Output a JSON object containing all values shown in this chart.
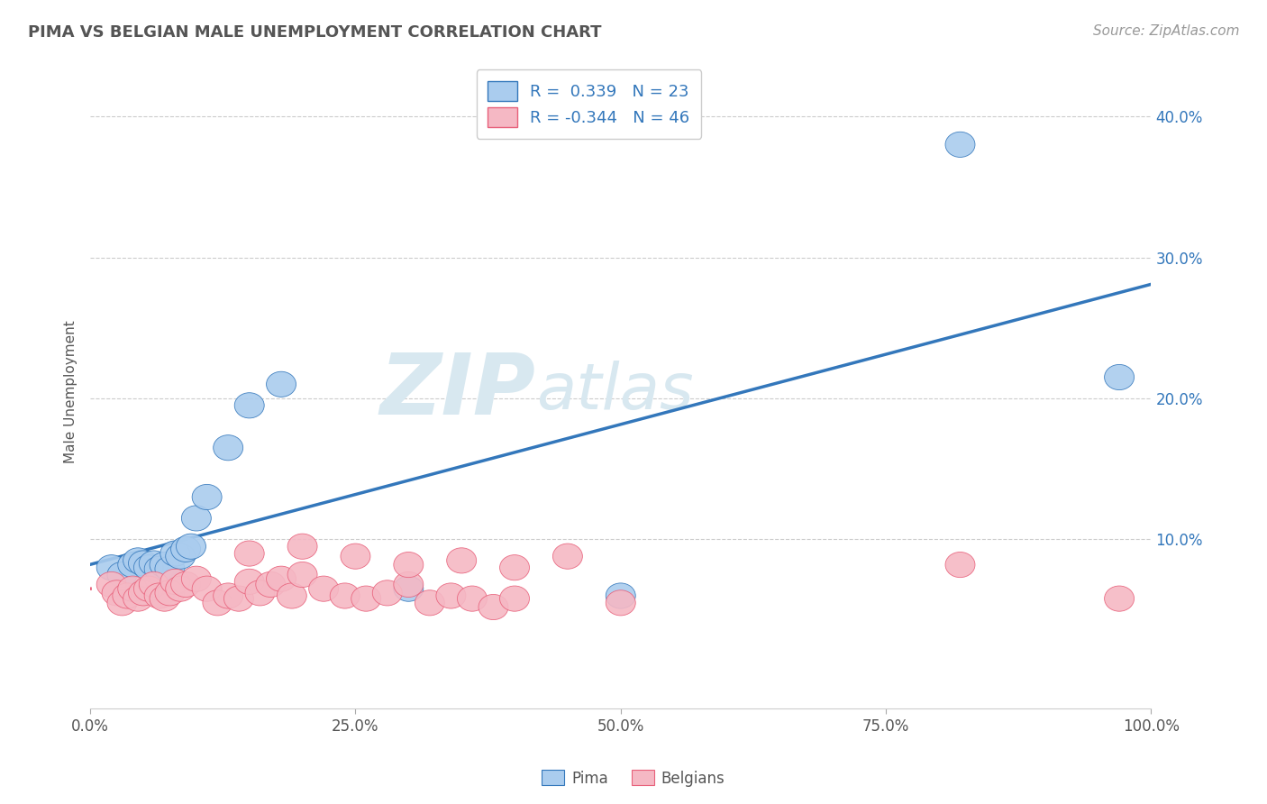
{
  "title": "PIMA VS BELGIAN MALE UNEMPLOYMENT CORRELATION CHART",
  "source": "Source: ZipAtlas.com",
  "ylabel": "Male Unemployment",
  "xlim": [
    0.0,
    1.0
  ],
  "ylim": [
    -0.02,
    0.43
  ],
  "xticks": [
    0.0,
    0.25,
    0.5,
    0.75,
    1.0
  ],
  "xtick_labels": [
    "0.0%",
    "25.0%",
    "50.0%",
    "75.0%",
    "100.0%"
  ],
  "ytick_labels": [
    "10.0%",
    "20.0%",
    "30.0%",
    "40.0%"
  ],
  "ytick_values": [
    0.1,
    0.2,
    0.3,
    0.4
  ],
  "legend_r_pima": " 0.339",
  "legend_n_pima": "23",
  "legend_r_belgians": "-0.344",
  "legend_n_belgians": "46",
  "pima_color": "#aaccee",
  "belgians_color": "#f5b8c4",
  "trendline_pima_color": "#3377bb",
  "trendline_belgians_color": "#e8607a",
  "watermark_zip": "ZIP",
  "watermark_atlas": "atlas",
  "background_color": "#ffffff",
  "pima_scatter_x": [
    0.02,
    0.03,
    0.04,
    0.045,
    0.05,
    0.055,
    0.06,
    0.065,
    0.07,
    0.075,
    0.08,
    0.085,
    0.09,
    0.095,
    0.1,
    0.11,
    0.13,
    0.15,
    0.18,
    0.3,
    0.5,
    0.82,
    0.97
  ],
  "pima_scatter_y": [
    0.08,
    0.075,
    0.082,
    0.085,
    0.083,
    0.08,
    0.083,
    0.079,
    0.082,
    0.079,
    0.09,
    0.088,
    0.093,
    0.095,
    0.115,
    0.13,
    0.165,
    0.195,
    0.21,
    0.065,
    0.06,
    0.38,
    0.215
  ],
  "belgians_scatter_x": [
    0.02,
    0.025,
    0.03,
    0.035,
    0.04,
    0.045,
    0.05,
    0.055,
    0.06,
    0.065,
    0.07,
    0.075,
    0.08,
    0.085,
    0.09,
    0.1,
    0.11,
    0.12,
    0.13,
    0.14,
    0.15,
    0.16,
    0.17,
    0.18,
    0.19,
    0.2,
    0.22,
    0.24,
    0.26,
    0.28,
    0.3,
    0.32,
    0.34,
    0.36,
    0.38,
    0.4,
    0.15,
    0.2,
    0.25,
    0.3,
    0.35,
    0.4,
    0.45,
    0.5,
    0.82,
    0.97
  ],
  "belgians_scatter_y": [
    0.068,
    0.062,
    0.055,
    0.06,
    0.065,
    0.058,
    0.062,
    0.065,
    0.068,
    0.06,
    0.058,
    0.062,
    0.07,
    0.065,
    0.068,
    0.072,
    0.065,
    0.055,
    0.06,
    0.058,
    0.07,
    0.062,
    0.068,
    0.072,
    0.06,
    0.075,
    0.065,
    0.06,
    0.058,
    0.062,
    0.068,
    0.055,
    0.06,
    0.058,
    0.052,
    0.058,
    0.09,
    0.095,
    0.088,
    0.082,
    0.085,
    0.08,
    0.088,
    0.055,
    0.082,
    0.058
  ]
}
